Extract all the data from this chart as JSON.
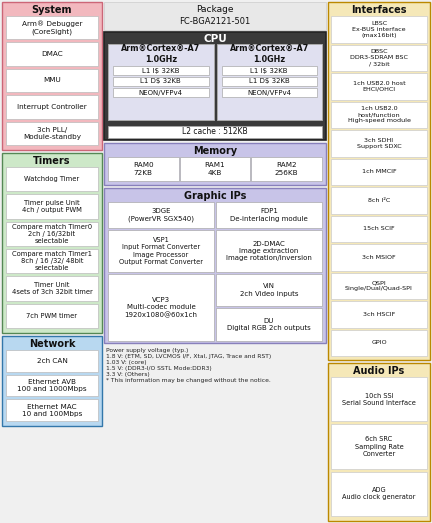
{
  "pkg_label": "Package",
  "pkg_name": "FC-BGA2121-501",
  "bg_color": "#f0f0f0",
  "system_color": "#f2b8be",
  "timers_color": "#cde8c8",
  "network_color": "#b8d8f0",
  "interfaces_color": "#f5e8b8",
  "audio_color": "#f5e8b8",
  "cpu_dark": "#3a3a3a",
  "cpu_core_bg": "#e0e0f0",
  "memory_color": "#c8c4e8",
  "graphic_color": "#c8c4e8",
  "system_blocks": [
    "Arm® Debugger\n(CoreSight)",
    "DMAC",
    "MMU",
    "Interrupt Controller",
    "3ch PLL/\nModule-standby"
  ],
  "timers_blocks": [
    "Watchdog Timer",
    "Timer pulse Unit\n4ch / output PWM",
    "Compare match Timer0\n2ch / 16/32bit\nselectable",
    "Compare match Timer1\n8ch / 16 /32/ 48bit\nselectable",
    "Timer Unit\n4sets of 3ch 32bit timer",
    "7ch PWM timer"
  ],
  "network_blocks": [
    "2ch CAN",
    "Ethernet AVB\n100 and 1000Mbps",
    "Ethernet MAC\n10 and 100Mbps"
  ],
  "interfaces_blocks": [
    "LBSC\nEx-BUS interface\n(max16bit)",
    "DBSC\nDDR3-SDRAM BSC\n/ 32bit",
    "1ch USB2.0 host\nEHCI/OHCI",
    "1ch USB2.0\nhost/function\nHigh-speed module",
    "3ch SDHI\nSupport SDXC",
    "1ch MMCIF",
    "8ch I²C",
    "15ch SCIF",
    "3ch MSIOF",
    "QSPI\nSingle/Dual/Quad-SPI",
    "3ch HSCIF",
    "GPIO"
  ],
  "audio_blocks": [
    "10ch SSI\nSerial Sound Interface",
    "6ch SRC\nSampling Rate\nConverter",
    "ADG\nAudio clock generator"
  ],
  "l2cache": "L2 cache : 512KB",
  "memory_title": "Memory",
  "memory_cells": [
    "RAM0\n72KB",
    "RAM1\n4KB",
    "RAM2\n256KB"
  ],
  "graphic_title": "Graphic IPs",
  "footnote": "Power supply voltage (typ.)\n1.8 V: (ETM, SD, LVCMOS I/F, Xtal, JTAG, Trace and RST)\n1.03 V: (core)\n1.5 V: (DDR3-I/O SSTL Mode:DDR3)\n3.3 V: (Others)\n* This information may be changed without the notice."
}
